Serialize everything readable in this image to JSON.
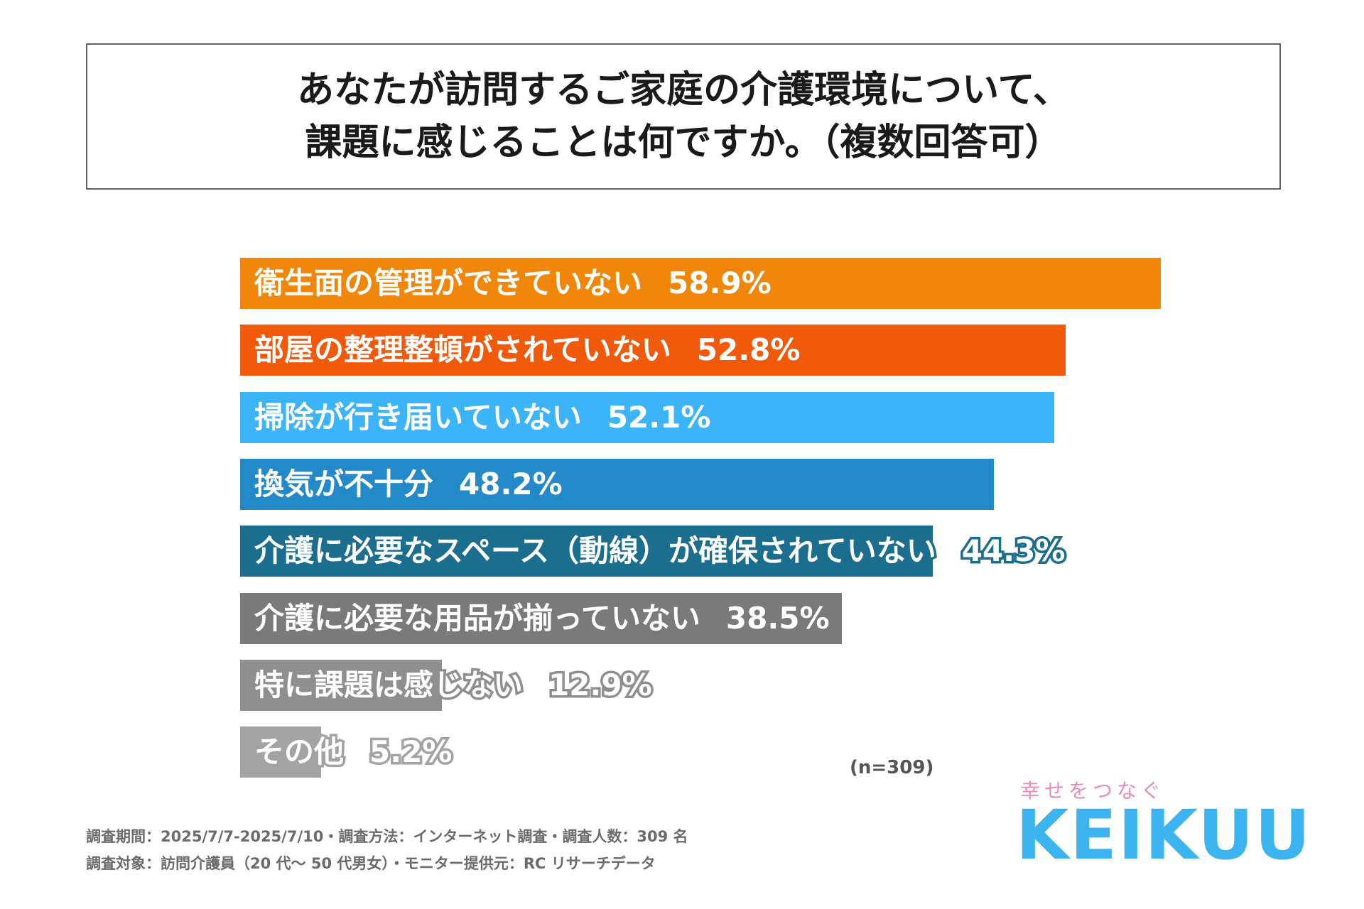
{
  "title": {
    "line1": "あなたが訪問するご家庭の介護環境について、",
    "line2": "課題に感じることは何ですか。（複数回答可）"
  },
  "chart_data": {
    "type": "bar",
    "orientation": "horizontal",
    "categories": [
      "衛生面の管理ができていない",
      "部屋の整理整頓がされていない",
      "掃除が行き届いていない",
      "換気が不十分",
      "介護に必要なスペース（動線）が確保されていない",
      "介護に必要な用品が揃っていない",
      "特に課題は感じない",
      "その他"
    ],
    "values": [
      58.9,
      52.8,
      52.1,
      48.2,
      44.3,
      38.5,
      12.9,
      5.2
    ],
    "value_labels": [
      "58.9%",
      "52.8%",
      "52.1%",
      "48.2%",
      "44.3%",
      "38.5%",
      "12.9%",
      "5.2%"
    ],
    "colors": [
      "#f0870a",
      "#f05a0a",
      "#3cb4fa",
      "#2389c8",
      "#1b6e8e",
      "#7a7a7a",
      "#8f8f8f",
      "#a3a3a3"
    ],
    "xlim": [
      0,
      58.9
    ],
    "grid": false,
    "legend": "none"
  },
  "sample_note": "(n=309)",
  "footnotes": [
    "調査期間：2025/7/7-2025/7/10・調査方法：インターネット調査・調査人数：309 名",
    "調査対象：訪問介護員（20 代～ 50 代男女）・モニター提供元：RC リサーチデータ"
  ],
  "logo": {
    "tagline": "幸せをつなぐ",
    "name": "KEIKUU",
    "name_color": "#3cb4ef",
    "tagline_color": "#e88bb8"
  }
}
